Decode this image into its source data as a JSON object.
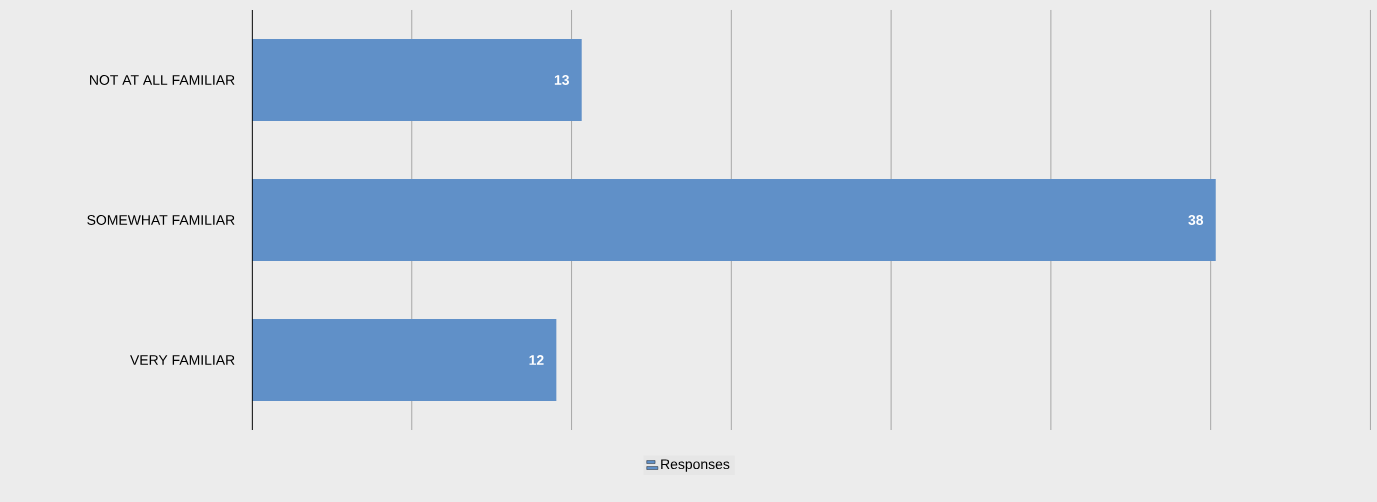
{
  "chart_data": {
    "type": "bar",
    "orientation": "horizontal",
    "categories": [
      "NOT AT ALL FAMILIAR",
      "SOMEWHAT FAMILIAR",
      "VERY FAMILIAR"
    ],
    "series": [
      {
        "name": "Responses",
        "color": "#6090c8",
        "values": [
          13,
          38,
          12
        ]
      }
    ],
    "xlim": [
      0,
      44.2
    ],
    "xticks": [
      {
        "value": 0,
        "label": null
      },
      {
        "value": 6.3,
        "label": null
      },
      {
        "value": 12.6,
        "label": null
      },
      {
        "value": 18.9,
        "label": null
      },
      {
        "value": 25.2,
        "label": null
      },
      {
        "value": 31.5,
        "label": null
      },
      {
        "value": 37.8,
        "label": null
      },
      {
        "value": 44.1,
        "label": null
      }
    ],
    "grid": "x",
    "legend": "bottom",
    "data_labels": true,
    "tick_labels": "y"
  }
}
